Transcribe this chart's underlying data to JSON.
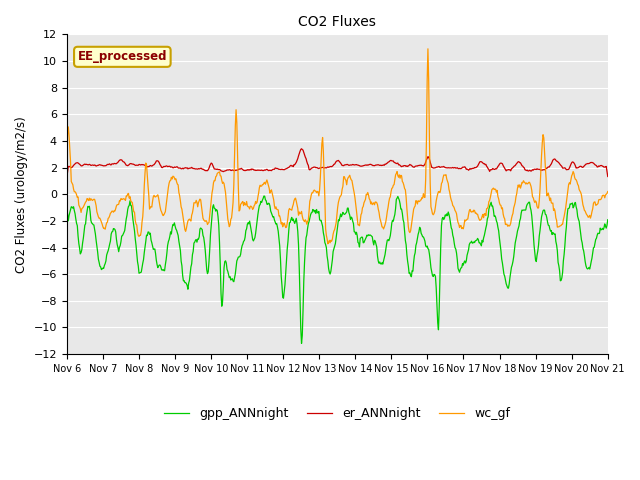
{
  "title": "CO2 Fluxes",
  "ylabel": "CO2 Fluxes (urology/m2/s)",
  "xlabel": "",
  "ylim": [
    -12,
    12
  ],
  "yticks": [
    -12,
    -10,
    -8,
    -6,
    -4,
    -2,
    0,
    2,
    4,
    6,
    8,
    10,
    12
  ],
  "background_color": "#e8e8e8",
  "fig_background": "#ffffff",
  "annotation_text": "EE_processed",
  "annotation_color": "#8b0000",
  "annotation_bg": "#ffffcc",
  "annotation_border": "#c8a000",
  "series": [
    {
      "label": "gpp_ANNnight",
      "color": "#00cc00",
      "lw": 0.9
    },
    {
      "label": "er_ANNnight",
      "color": "#cc0000",
      "lw": 0.9
    },
    {
      "label": "wc_gf",
      "color": "#ff9900",
      "lw": 0.9
    }
  ],
  "x_tick_labels": [
    "Nov 6",
    "Nov 7",
    "Nov 8",
    "Nov 9",
    "Nov 10",
    "Nov 11",
    "Nov 12",
    "Nov 13",
    "Nov 14",
    "Nov 15",
    "Nov 16",
    "Nov 17",
    "Nov 18",
    "Nov 19",
    "Nov 20",
    "Nov 21"
  ],
  "n_points": 720,
  "legend_ncol": 3,
  "grid_color": "#ffffff",
  "grid_lw": 0.8
}
